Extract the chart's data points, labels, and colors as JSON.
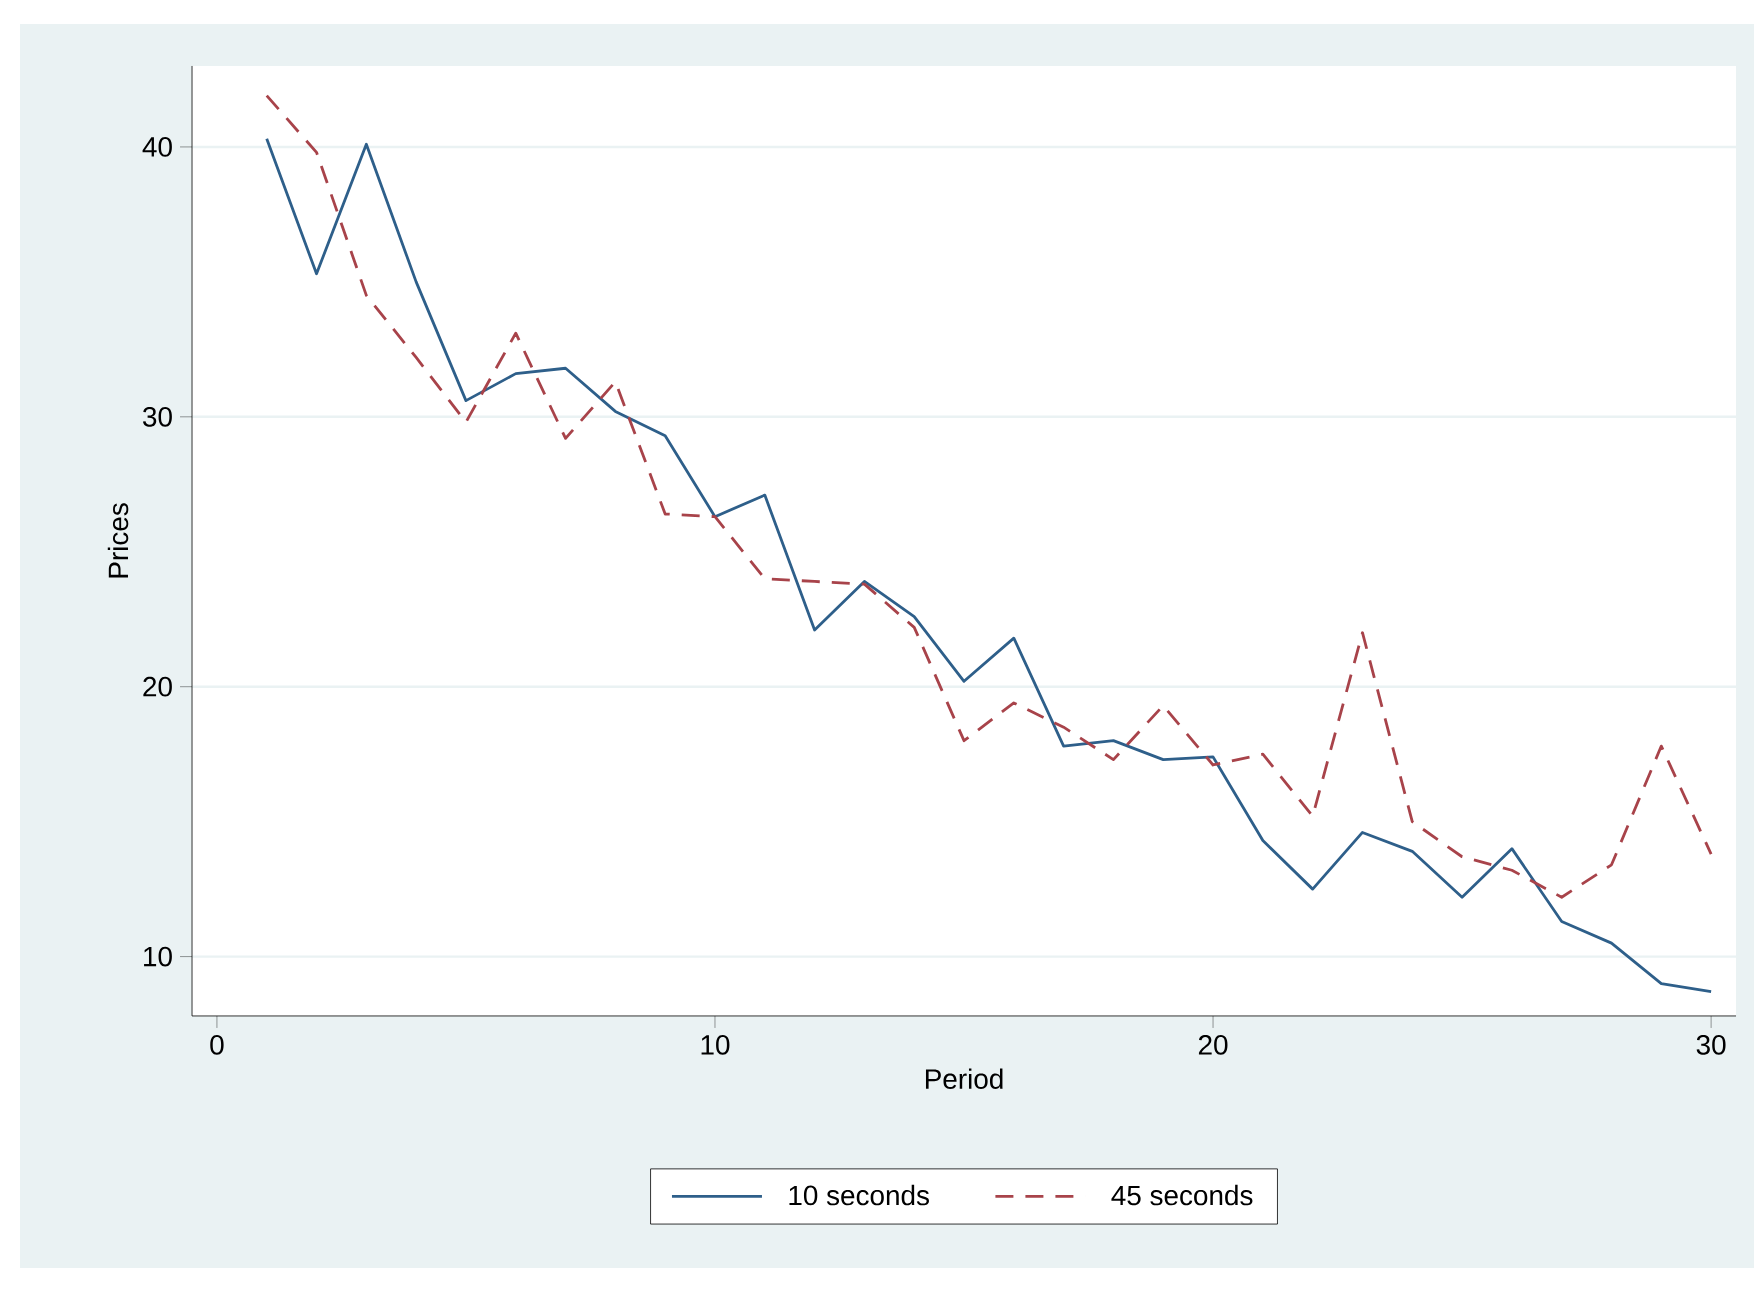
{
  "chart_data": {
    "type": "line",
    "xlabel": "Period",
    "ylabel": "Prices",
    "x": [
      1,
      2,
      3,
      4,
      5,
      6,
      7,
      8,
      9,
      10,
      11,
      12,
      13,
      14,
      15,
      16,
      17,
      18,
      19,
      20,
      21,
      22,
      23,
      24,
      25,
      26,
      27,
      28,
      29,
      30
    ],
    "series": [
      {
        "name": "10 seconds",
        "color": "#2e5f8a",
        "line_style": "solid",
        "values": [
          40.3,
          35.3,
          40.1,
          35.0,
          30.6,
          31.6,
          31.8,
          30.2,
          29.3,
          26.3,
          27.1,
          22.1,
          23.9,
          22.6,
          20.2,
          21.8,
          17.8,
          18.0,
          17.3,
          17.4,
          14.3,
          12.5,
          14.6,
          13.9,
          12.2,
          14.0,
          11.3,
          10.5,
          9.0,
          8.7
        ]
      },
      {
        "name": "45 seconds",
        "color": "#a8434a",
        "line_style": "dashed",
        "values": [
          41.9,
          39.8,
          34.5,
          32.2,
          29.8,
          33.1,
          29.2,
          31.3,
          26.4,
          26.3,
          24.0,
          23.9,
          23.8,
          22.2,
          18.0,
          19.4,
          18.5,
          17.3,
          19.3,
          17.1,
          17.5,
          15.2,
          22.0,
          15.0,
          13.7,
          13.2,
          12.2,
          13.4,
          17.8,
          13.8
        ]
      }
    ],
    "xlim": [
      -0.5,
      30.5
    ],
    "ylim": [
      7.8,
      43
    ],
    "xticks": [
      0,
      10,
      20,
      30
    ],
    "yticks": [
      10,
      20,
      30,
      40
    ],
    "grid": "y",
    "legend": "bottom",
    "marker": "none"
  }
}
